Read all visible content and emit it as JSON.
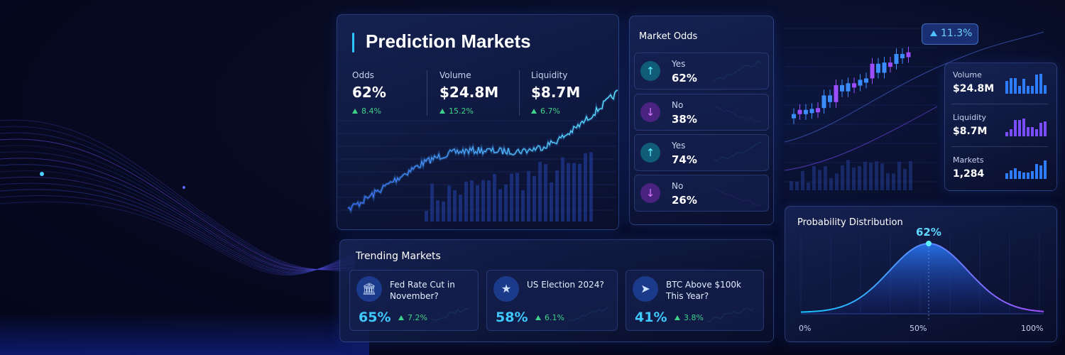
{
  "hero": {
    "title": "Prediction Markets",
    "stats": [
      {
        "label": "Odds",
        "value": "62%",
        "change": "8.4%"
      },
      {
        "label": "Volume",
        "value": "$24.8M",
        "change": "15.2%"
      },
      {
        "label": "Liquidity",
        "value": "$8.7M",
        "change": "6.7%"
      }
    ]
  },
  "market_odds": {
    "title": "Market Odds",
    "rows": [
      {
        "label": "Yes",
        "value": "62%"
      },
      {
        "label": "No",
        "value": "38%"
      },
      {
        "label": "Yes",
        "value": "74%"
      },
      {
        "label": "No",
        "value": "26%"
      }
    ]
  },
  "trending": {
    "title": "Trending Markets",
    "items": [
      {
        "name": "Fed Rate Cut in November?",
        "value": "65%",
        "change": "7.2%"
      },
      {
        "name": "US Election 2024?",
        "value": "58%",
        "change": "6.1%"
      },
      {
        "name": "BTC Above $100k This Year?",
        "value": "41%",
        "change": "3.8%"
      }
    ]
  },
  "candles": {
    "badge": "11.3%"
  },
  "side_stats": [
    {
      "label": "Volume",
      "value": "$24.8M"
    },
    {
      "label": "Liquidity",
      "value": "$8.7M"
    },
    {
      "label": "Markets",
      "value": "1,284"
    }
  ],
  "distribution": {
    "title": "Probability Distribution",
    "peak_label": "62%",
    "axis_labels": [
      "0%",
      "50%",
      "100%"
    ]
  }
}
